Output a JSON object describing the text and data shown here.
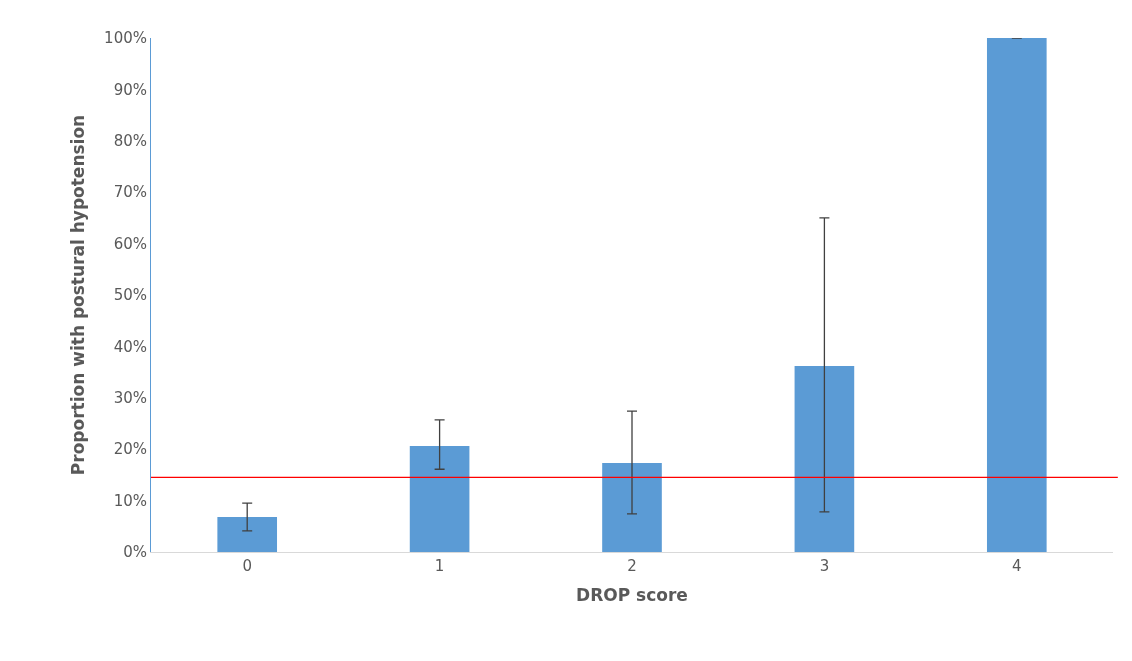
{
  "chart_data": {
    "type": "bar",
    "xlabel": "DROP score",
    "ylabel": "Proportion with postural hypotension",
    "categories": [
      "0",
      "1",
      "2",
      "3",
      "4"
    ],
    "values": [
      6.8,
      20.6,
      17.3,
      36.2,
      100
    ],
    "errors": [
      [
        4.1,
        9.5
      ],
      [
        16.1,
        25.7
      ],
      [
        7.4,
        27.4
      ],
      [
        7.8,
        65.0
      ],
      null
    ],
    "color": "#5b9bd5",
    "ylim": [
      0,
      100
    ],
    "yticks": [
      {
        "value": 0,
        "label": "0%"
      },
      {
        "value": 10,
        "label": "10%"
      },
      {
        "value": 20,
        "label": "20%"
      },
      {
        "value": 30,
        "label": "30%"
      },
      {
        "value": 40,
        "label": "40%"
      },
      {
        "value": 50,
        "label": "50%"
      },
      {
        "value": 60,
        "label": "60%"
      },
      {
        "value": 70,
        "label": "70%"
      },
      {
        "value": 80,
        "label": "80%"
      },
      {
        "value": 90,
        "label": "90%"
      },
      {
        "value": 100,
        "label": "100%"
      }
    ],
    "ref_lines": [
      {
        "axis": "y",
        "value": 14.5,
        "color": "#ff0000",
        "line_style": "solid"
      }
    ]
  }
}
